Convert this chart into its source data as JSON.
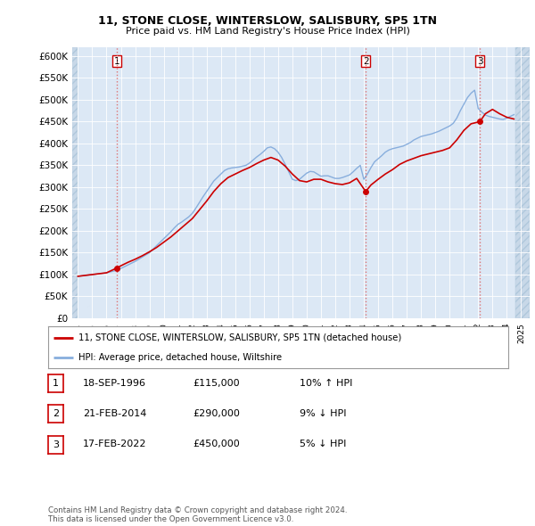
{
  "title1": "11, STONE CLOSE, WINTERSLOW, SALISBURY, SP5 1TN",
  "title2": "Price paid vs. HM Land Registry's House Price Index (HPI)",
  "yticks": [
    0,
    50000,
    100000,
    150000,
    200000,
    250000,
    300000,
    350000,
    400000,
    450000,
    500000,
    550000,
    600000
  ],
  "ytick_labels": [
    "£0",
    "£50K",
    "£100K",
    "£150K",
    "£200K",
    "£250K",
    "£300K",
    "£350K",
    "£400K",
    "£450K",
    "£500K",
    "£550K",
    "£600K"
  ],
  "xlim_start": 1993.6,
  "xlim_end": 2025.6,
  "ylim_min": 0,
  "ylim_max": 620000,
  "sale_dates": [
    1996.72,
    2014.13,
    2022.12
  ],
  "sale_prices": [
    115000,
    290000,
    450000
  ],
  "sale_labels": [
    "1",
    "2",
    "3"
  ],
  "sale_color": "#cc0000",
  "hpi_color": "#88aedd",
  "vline_color": "#dd6666",
  "background_color": "#ffffff",
  "plot_bg_color": "#dce8f5",
  "grid_color": "#ffffff",
  "hatch_color": "#c8d8e8",
  "legend_label_red": "11, STONE CLOSE, WINTERSLOW, SALISBURY, SP5 1TN (detached house)",
  "legend_label_blue": "HPI: Average price, detached house, Wiltshire",
  "table_rows": [
    {
      "num": "1",
      "date": "18-SEP-1996",
      "price": "£115,000",
      "hpi": "10% ↑ HPI"
    },
    {
      "num": "2",
      "date": "21-FEB-2014",
      "price": "£290,000",
      "hpi": "9% ↓ HPI"
    },
    {
      "num": "3",
      "date": "17-FEB-2022",
      "price": "£450,000",
      "hpi": "5% ↓ HPI"
    }
  ],
  "footer": "Contains HM Land Registry data © Crown copyright and database right 2024.\nThis data is licensed under the Open Government Licence v3.0.",
  "hpi_x": [
    1994.0,
    1994.25,
    1994.5,
    1994.75,
    1995.0,
    1995.25,
    1995.5,
    1995.75,
    1996.0,
    1996.25,
    1996.5,
    1996.75,
    1997.0,
    1997.25,
    1997.5,
    1997.75,
    1998.0,
    1998.25,
    1998.5,
    1998.75,
    1999.0,
    1999.25,
    1999.5,
    1999.75,
    2000.0,
    2000.25,
    2000.5,
    2000.75,
    2001.0,
    2001.25,
    2001.5,
    2001.75,
    2002.0,
    2002.25,
    2002.5,
    2002.75,
    2003.0,
    2003.25,
    2003.5,
    2003.75,
    2004.0,
    2004.25,
    2004.5,
    2004.75,
    2005.0,
    2005.25,
    2005.5,
    2005.75,
    2006.0,
    2006.25,
    2006.5,
    2006.75,
    2007.0,
    2007.25,
    2007.5,
    2007.75,
    2008.0,
    2008.25,
    2008.5,
    2008.75,
    2009.0,
    2009.25,
    2009.5,
    2009.75,
    2010.0,
    2010.25,
    2010.5,
    2010.75,
    2011.0,
    2011.25,
    2011.5,
    2011.75,
    2012.0,
    2012.25,
    2012.5,
    2012.75,
    2013.0,
    2013.25,
    2013.5,
    2013.75,
    2014.0,
    2014.25,
    2014.5,
    2014.75,
    2015.0,
    2015.25,
    2015.5,
    2015.75,
    2016.0,
    2016.25,
    2016.5,
    2016.75,
    2017.0,
    2017.25,
    2017.5,
    2017.75,
    2018.0,
    2018.25,
    2018.5,
    2018.75,
    2019.0,
    2019.25,
    2019.5,
    2019.75,
    2020.0,
    2020.25,
    2020.5,
    2020.75,
    2021.0,
    2021.25,
    2021.5,
    2021.75,
    2022.0,
    2022.25,
    2022.5,
    2022.75,
    2023.0,
    2023.25,
    2023.5,
    2023.75,
    2024.0,
    2024.25,
    2024.5
  ],
  "hpi_y": [
    96000,
    97000,
    98000,
    99000,
    100000,
    101000,
    102000,
    103000,
    104000,
    106000,
    108000,
    110000,
    114000,
    118000,
    122000,
    126000,
    130000,
    135000,
    140000,
    145000,
    150000,
    158000,
    166000,
    174000,
    182000,
    190000,
    198000,
    207000,
    215000,
    220000,
    226000,
    232000,
    240000,
    252000,
    265000,
    278000,
    290000,
    302000,
    314000,
    322000,
    330000,
    338000,
    342000,
    344000,
    345000,
    346000,
    348000,
    350000,
    355000,
    362000,
    369000,
    375000,
    382000,
    390000,
    392000,
    388000,
    380000,
    368000,
    352000,
    335000,
    318000,
    315000,
    318000,
    325000,
    332000,
    336000,
    335000,
    330000,
    325000,
    326000,
    326000,
    323000,
    320000,
    320000,
    322000,
    325000,
    328000,
    335000,
    343000,
    350000,
    318000,
    330000,
    345000,
    358000,
    365000,
    372000,
    380000,
    385000,
    388000,
    390000,
    392000,
    394000,
    398000,
    402000,
    408000,
    412000,
    416000,
    418000,
    420000,
    422000,
    425000,
    428000,
    432000,
    436000,
    440000,
    446000,
    458000,
    475000,
    490000,
    505000,
    515000,
    522000,
    480000,
    472000,
    465000,
    462000,
    460000,
    458000,
    456000,
    455000,
    458000,
    462000,
    466000
  ],
  "red_x": [
    1994.0,
    1994.5,
    1995.0,
    1995.5,
    1996.0,
    1996.72,
    1997.0,
    1997.5,
    1998.0,
    1998.5,
    1999.0,
    1999.5,
    2000.0,
    2000.5,
    2001.0,
    2001.5,
    2002.0,
    2002.5,
    2003.0,
    2003.5,
    2004.0,
    2004.5,
    2005.0,
    2005.5,
    2006.0,
    2006.5,
    2007.0,
    2007.5,
    2008.0,
    2008.5,
    2009.0,
    2009.5,
    2010.0,
    2010.5,
    2011.0,
    2011.5,
    2012.0,
    2012.5,
    2013.0,
    2013.5,
    2014.13,
    2014.5,
    2015.0,
    2015.5,
    2016.0,
    2016.5,
    2017.0,
    2017.5,
    2018.0,
    2018.5,
    2019.0,
    2019.5,
    2020.0,
    2020.5,
    2021.0,
    2021.5,
    2022.12,
    2022.5,
    2023.0,
    2023.5,
    2024.0,
    2024.5
  ],
  "red_y": [
    96000,
    98000,
    100000,
    102000,
    104000,
    115000,
    120000,
    128000,
    135000,
    143000,
    152000,
    162000,
    174000,
    186000,
    200000,
    214000,
    228000,
    248000,
    268000,
    290000,
    308000,
    322000,
    330000,
    338000,
    345000,
    354000,
    362000,
    368000,
    362000,
    348000,
    330000,
    315000,
    312000,
    318000,
    318000,
    312000,
    308000,
    306000,
    310000,
    320000,
    290000,
    305000,
    318000,
    330000,
    340000,
    352000,
    360000,
    366000,
    372000,
    376000,
    380000,
    384000,
    390000,
    408000,
    430000,
    445000,
    450000,
    468000,
    478000,
    468000,
    460000,
    456000
  ]
}
